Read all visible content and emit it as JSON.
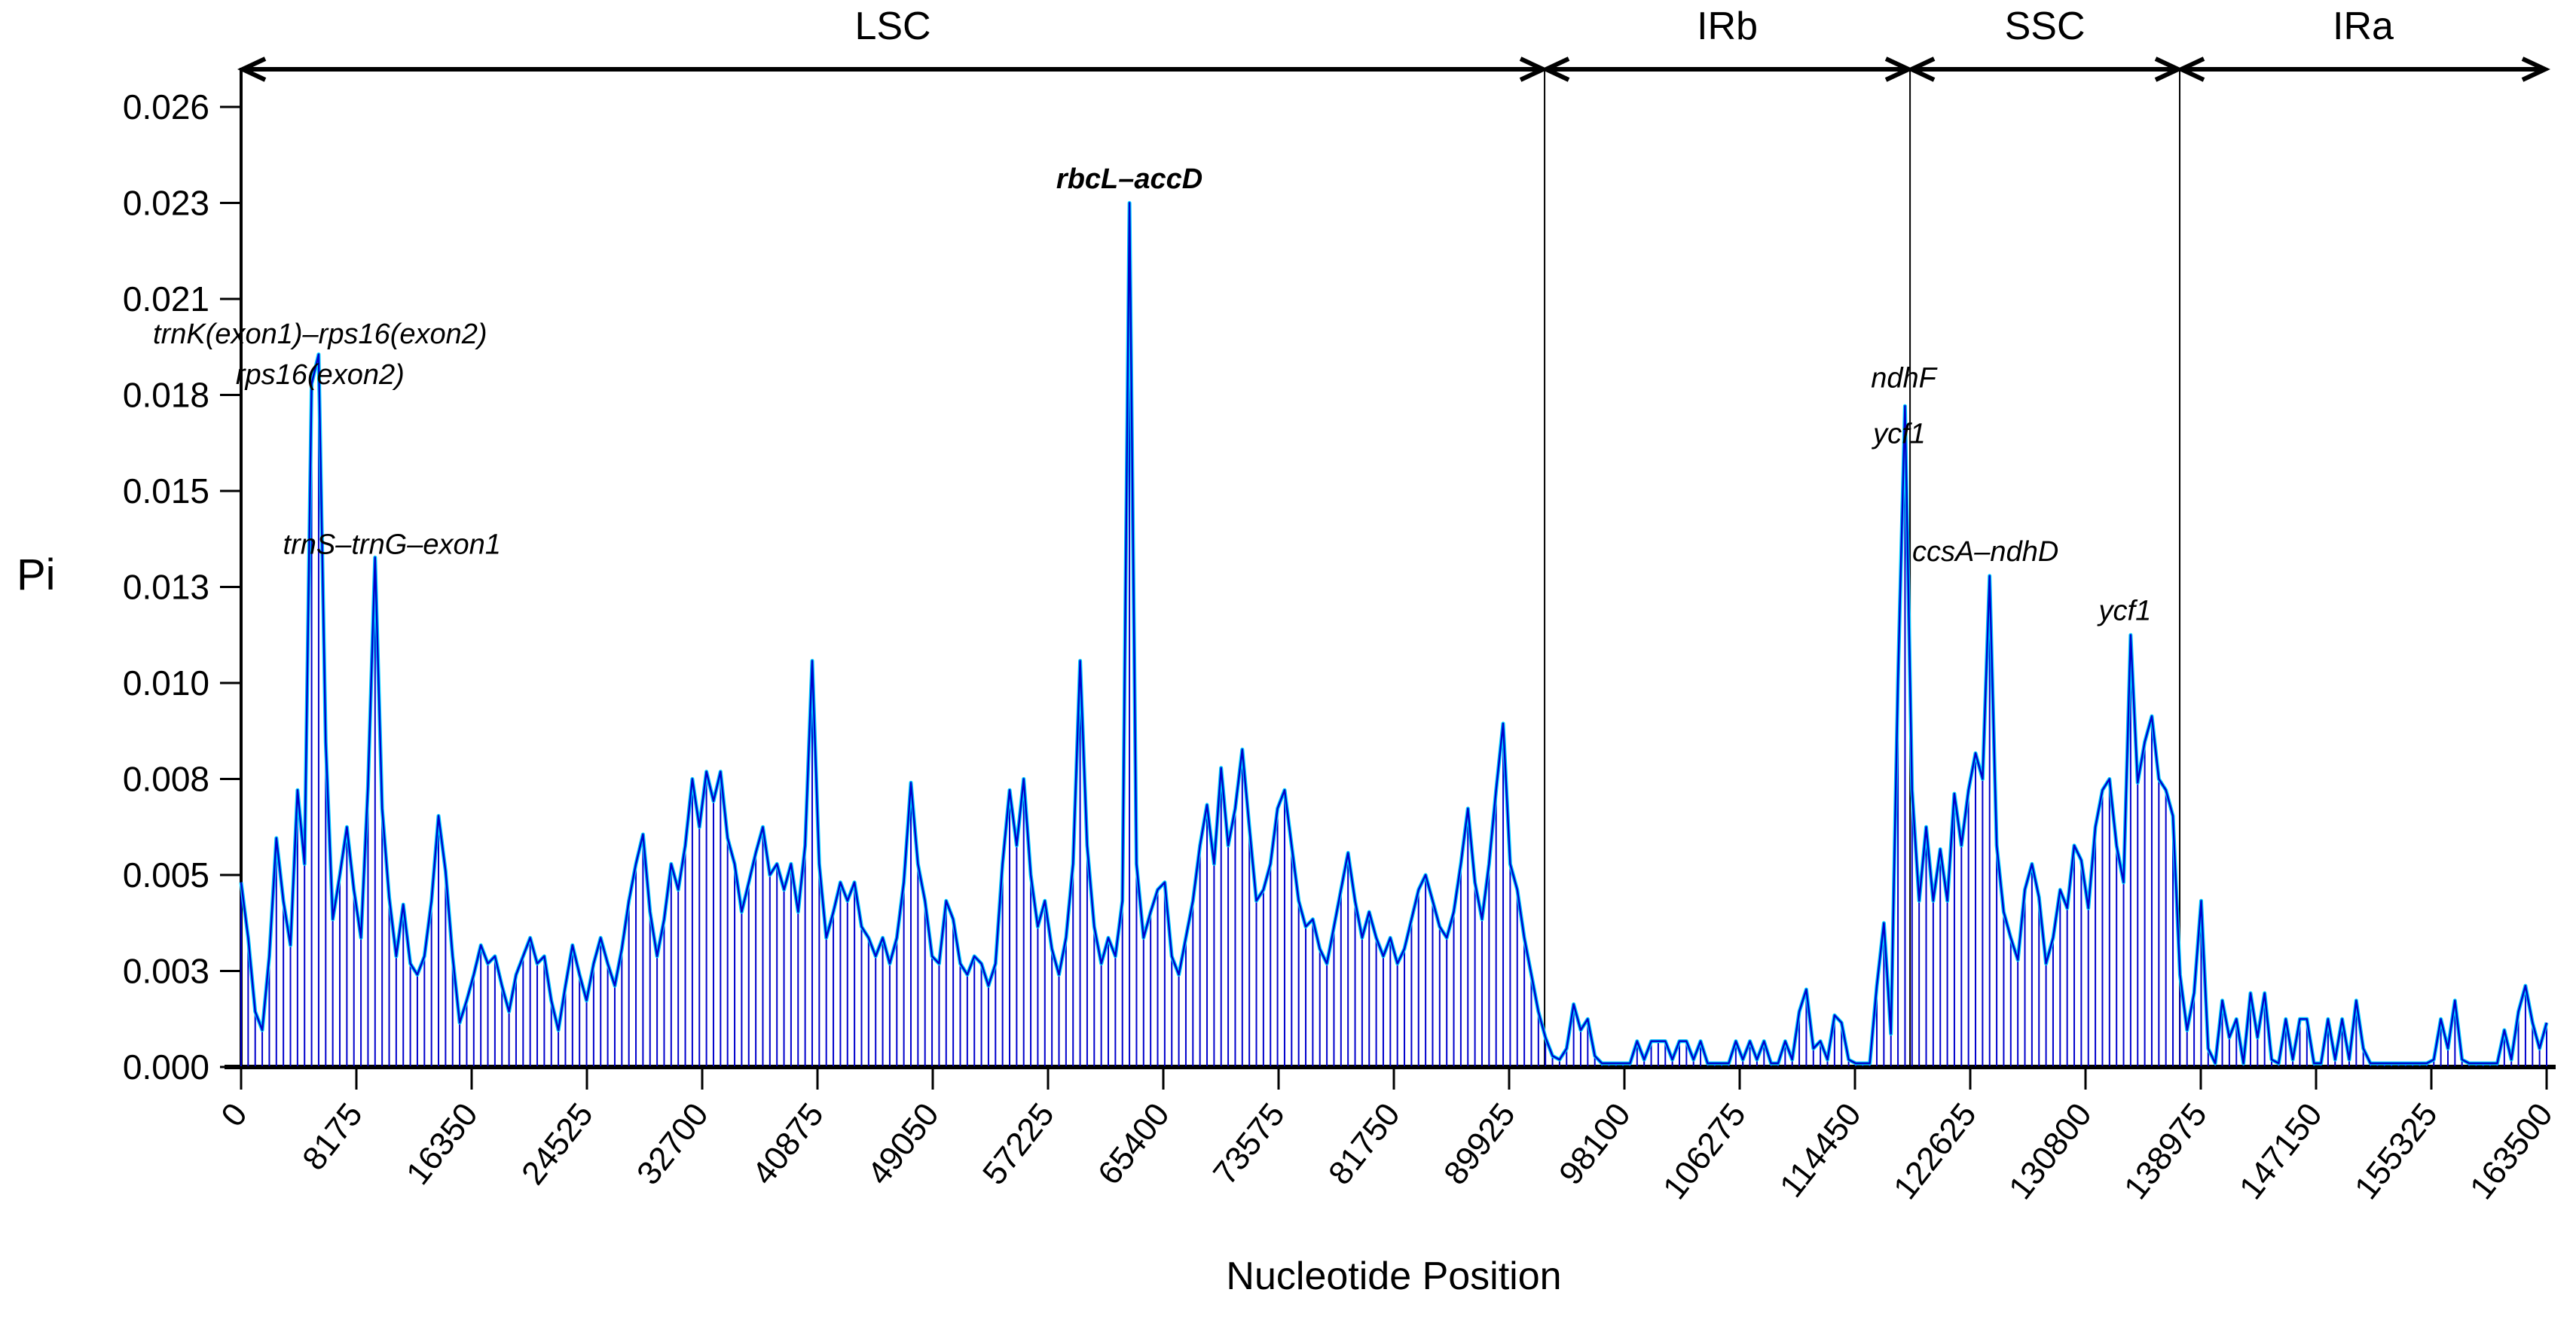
{
  "chart_data": {
    "type": "line",
    "title": "",
    "xlabel": "Nucleotide Position",
    "ylabel": "Pi",
    "xlim": [
      0,
      163500
    ],
    "ylim": [
      0,
      0.026
    ],
    "grid": false,
    "legend": "none",
    "x_step": 500,
    "x_tick_labels": [
      "0",
      "8175",
      "16350",
      "24525",
      "32700",
      "40875",
      "49050",
      "57225",
      "65400",
      "73575",
      "81750",
      "89925",
      "98100",
      "106275",
      "114450",
      "122625",
      "130800",
      "138975",
      "147150",
      "155325",
      "163500"
    ],
    "y_tick_labels": [
      "0.000",
      "0.003",
      "0.005",
      "0.008",
      "0.010",
      "0.013",
      "0.015",
      "0.018",
      "0.021",
      "0.023",
      "0.026"
    ],
    "colors": {
      "line": "#0000cc",
      "halo": "#00ccff",
      "axis": "#000000"
    },
    "regions": [
      {
        "label": "LSC",
        "start": 0,
        "end": 92440
      },
      {
        "label": "IRb",
        "start": 92440,
        "end": 118355
      },
      {
        "label": "SSC",
        "start": 118355,
        "end": 137480
      },
      {
        "label": "IRa",
        "start": 137480,
        "end": 163500
      }
    ],
    "annotations": [
      {
        "label": "trnK(exon1)–rps16(exon2)",
        "nt": 5600,
        "pi": 0.0196,
        "bold": false
      },
      {
        "label": "rps16(exon2)",
        "nt": 5600,
        "pi": 0.0185,
        "bold": false
      },
      {
        "label": "trnS–trnG–exon1",
        "nt": 10700,
        "pi": 0.0139,
        "bold": false
      },
      {
        "label": "rbcL–accD",
        "nt": 63000,
        "pi": 0.0238,
        "bold": true
      },
      {
        "label": "ndhF",
        "nt": 117900,
        "pi": 0.0184,
        "bold": false
      },
      {
        "label": "ycf1",
        "nt": 117600,
        "pi": 0.0169,
        "bold": false
      },
      {
        "label": "ccsA–ndhD",
        "nt": 123700,
        "pi": 0.0137,
        "bold": false
      },
      {
        "label": "ycf1",
        "nt": 133600,
        "pi": 0.0121,
        "bold": false
      }
    ],
    "series": [
      {
        "name": "Pi",
        "x_start": 0,
        "x_step": 500,
        "values_x10000": [
          50,
          35,
          15,
          10,
          30,
          62,
          45,
          33,
          75,
          55,
          185,
          193,
          88,
          40,
          52,
          65,
          48,
          35,
          76,
          138,
          70,
          46,
          30,
          44,
          28,
          25,
          30,
          45,
          68,
          53,
          30,
          12,
          18,
          25,
          33,
          28,
          30,
          22,
          15,
          25,
          30,
          35,
          28,
          30,
          18,
          10,
          22,
          33,
          25,
          18,
          28,
          35,
          28,
          22,
          32,
          45,
          55,
          63,
          42,
          30,
          40,
          55,
          48,
          60,
          78,
          65,
          80,
          72,
          80,
          62,
          55,
          42,
          50,
          58,
          65,
          52,
          55,
          48,
          55,
          42,
          60,
          110,
          55,
          35,
          42,
          50,
          45,
          50,
          38,
          35,
          30,
          35,
          28,
          35,
          50,
          77,
          55,
          45,
          30,
          28,
          45,
          40,
          28,
          25,
          30,
          28,
          22,
          28,
          55,
          75,
          60,
          78,
          52,
          38,
          45,
          32,
          25,
          35,
          55,
          110,
          60,
          38,
          28,
          35,
          30,
          45,
          234,
          55,
          35,
          42,
          48,
          50,
          30,
          25,
          35,
          45,
          60,
          71,
          55,
          81,
          60,
          70,
          86,
          65,
          45,
          48,
          55,
          70,
          75,
          60,
          45,
          38,
          40,
          32,
          28,
          38,
          48,
          58,
          45,
          35,
          42,
          35,
          30,
          35,
          28,
          32,
          40,
          48,
          52,
          45,
          38,
          35,
          42,
          55,
          70,
          50,
          40,
          55,
          75,
          93,
          55,
          48,
          35,
          25,
          15,
          8,
          3,
          2,
          5,
          17,
          10,
          13,
          3,
          1,
          1,
          1,
          1,
          1,
          7,
          2,
          7,
          7,
          7,
          2,
          7,
          7,
          2,
          7,
          1,
          1,
          1,
          1,
          7,
          2,
          7,
          2,
          7,
          1,
          1,
          7,
          2,
          15,
          21,
          5,
          7,
          2,
          14,
          12,
          2,
          1,
          1,
          1,
          22,
          39,
          9,
          105,
          179,
          75,
          45,
          65,
          45,
          59,
          45,
          74,
          60,
          75,
          85,
          78,
          133,
          60,
          42,
          35,
          29,
          48,
          55,
          46,
          28,
          35,
          48,
          43,
          60,
          56,
          43,
          65,
          75,
          78,
          60,
          50,
          117,
          77,
          88,
          95,
          78,
          75,
          68,
          25,
          10,
          20,
          45,
          5,
          1,
          18,
          8,
          13,
          1,
          20,
          8,
          20,
          2,
          1,
          13,
          2,
          13,
          13,
          1,
          1,
          13,
          2,
          13,
          2,
          18,
          5,
          1,
          1,
          1,
          1,
          1,
          1,
          1,
          1,
          1,
          2,
          13,
          5,
          18,
          2,
          1,
          1,
          1,
          1,
          1,
          10,
          2,
          15,
          22,
          12,
          5,
          12
        ]
      }
    ]
  }
}
